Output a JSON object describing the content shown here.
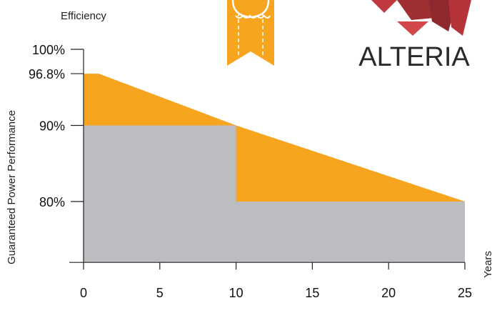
{
  "colors": {
    "warranty_fill": "#F7A41E",
    "step_fill": "#BCBDC0",
    "axis": "#222222",
    "brand_red": "#C0393F"
  },
  "logo": {
    "wordmark": "ALTERIA"
  },
  "chart_data": {
    "type": "area",
    "y_title": "Efficiency",
    "ylabel": "Guaranteed Power Performance",
    "xlabel": "Years",
    "xlim": [
      0,
      25
    ],
    "ylim": [
      72,
      100
    ],
    "x_ticks": [
      0,
      5,
      10,
      15,
      20,
      25
    ],
    "x_tick_labels": [
      "0",
      "5",
      "10",
      "15",
      "20",
      "25"
    ],
    "y_ticks": [
      100,
      96.8,
      90,
      80
    ],
    "y_tick_labels": [
      "100%",
      "96.8%",
      "90%",
      "80%"
    ],
    "grid": false,
    "legend": "none",
    "series": [
      {
        "kind": "linear-warranty",
        "x": [
          0,
          1,
          10,
          25
        ],
        "y": [
          96.8,
          96.8,
          90,
          80
        ]
      },
      {
        "kind": "step-warranty",
        "x": [
          0,
          10,
          10,
          25
        ],
        "y": [
          90,
          90,
          80,
          80
        ]
      }
    ]
  }
}
